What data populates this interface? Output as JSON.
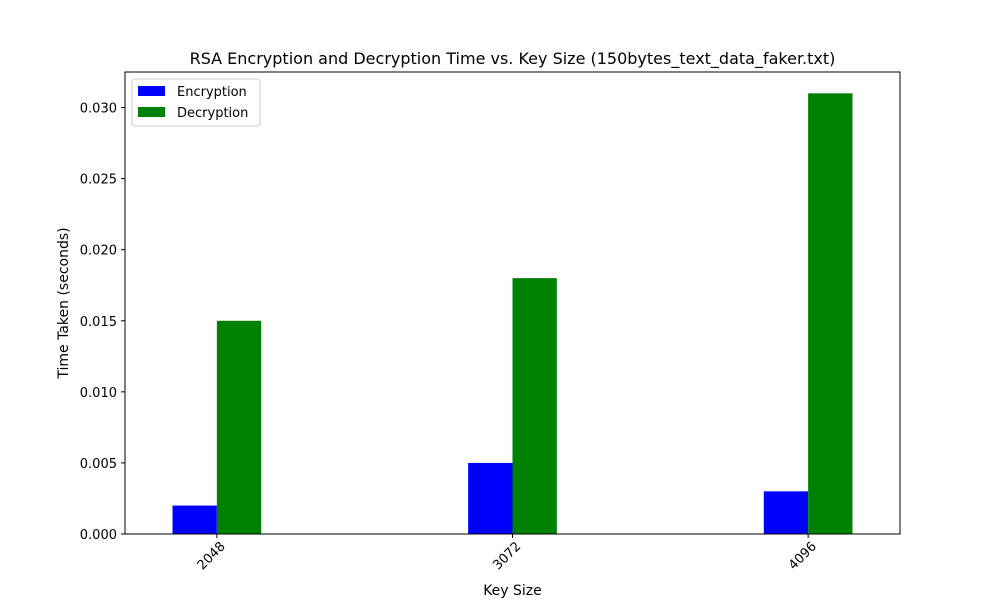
{
  "chart_data": {
    "type": "bar",
    "title": "RSA Encryption and Decryption Time vs. Key Size (150bytes_text_data_faker.txt)",
    "xlabel": "Key Size",
    "ylabel": "Time Taken (seconds)",
    "categories": [
      "2048",
      "3072",
      "4096"
    ],
    "series": [
      {
        "name": "Encryption",
        "values": [
          0.002,
          0.005,
          0.003
        ],
        "color": "#0000ff"
      },
      {
        "name": "Decryption",
        "values": [
          0.015,
          0.018,
          0.031
        ],
        "color": "#008000"
      }
    ],
    "ylim": [
      0,
      0.0325
    ],
    "yticks": [
      "0.000",
      "0.005",
      "0.010",
      "0.015",
      "0.020",
      "0.025",
      "0.030"
    ],
    "grid": false,
    "legend_position": "top-left"
  }
}
